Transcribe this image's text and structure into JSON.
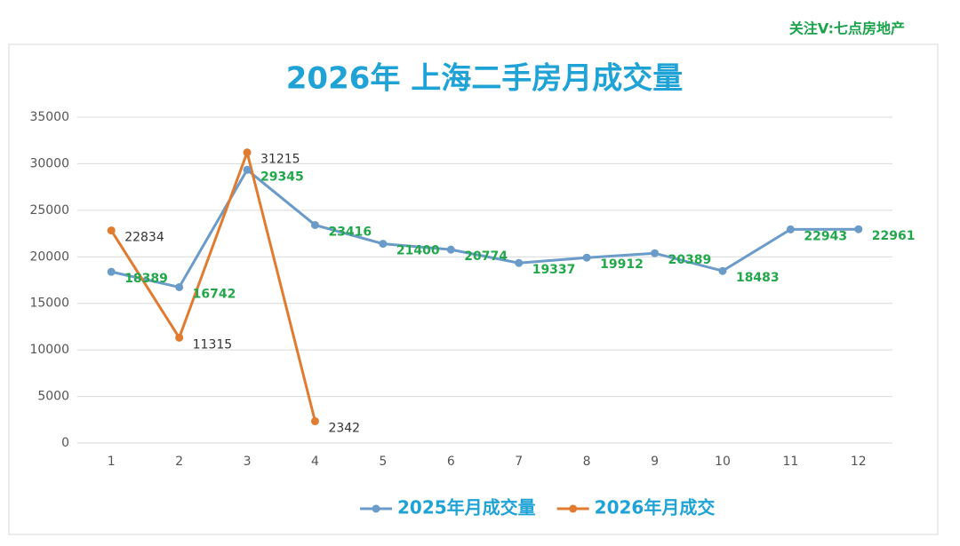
{
  "watermark": "关注V:七点房地产",
  "chart_data": {
    "type": "line",
    "title": "2026年 上海二手房月成交量",
    "categories": [
      "1",
      "2",
      "3",
      "4",
      "5",
      "6",
      "7",
      "8",
      "9",
      "10",
      "11",
      "12"
    ],
    "series": [
      {
        "name": "2025年月成交量",
        "color": "#6b9bc8",
        "label_color": "#22a84a",
        "values": [
          18389,
          16742,
          29345,
          23416,
          21400,
          20774,
          19337,
          19912,
          20389,
          18483,
          22943,
          22961
        ]
      },
      {
        "name": "2026年月成交",
        "color": "#e07b30",
        "label_color": "#333333",
        "values": [
          22834,
          11315,
          31215,
          2342,
          null,
          null,
          null,
          null,
          null,
          null,
          null,
          null
        ]
      }
    ],
    "ylim": [
      0,
      35000
    ],
    "yticks": [
      0,
      5000,
      10000,
      15000,
      20000,
      25000,
      30000,
      35000
    ],
    "grid": true,
    "legend": "bottom"
  }
}
